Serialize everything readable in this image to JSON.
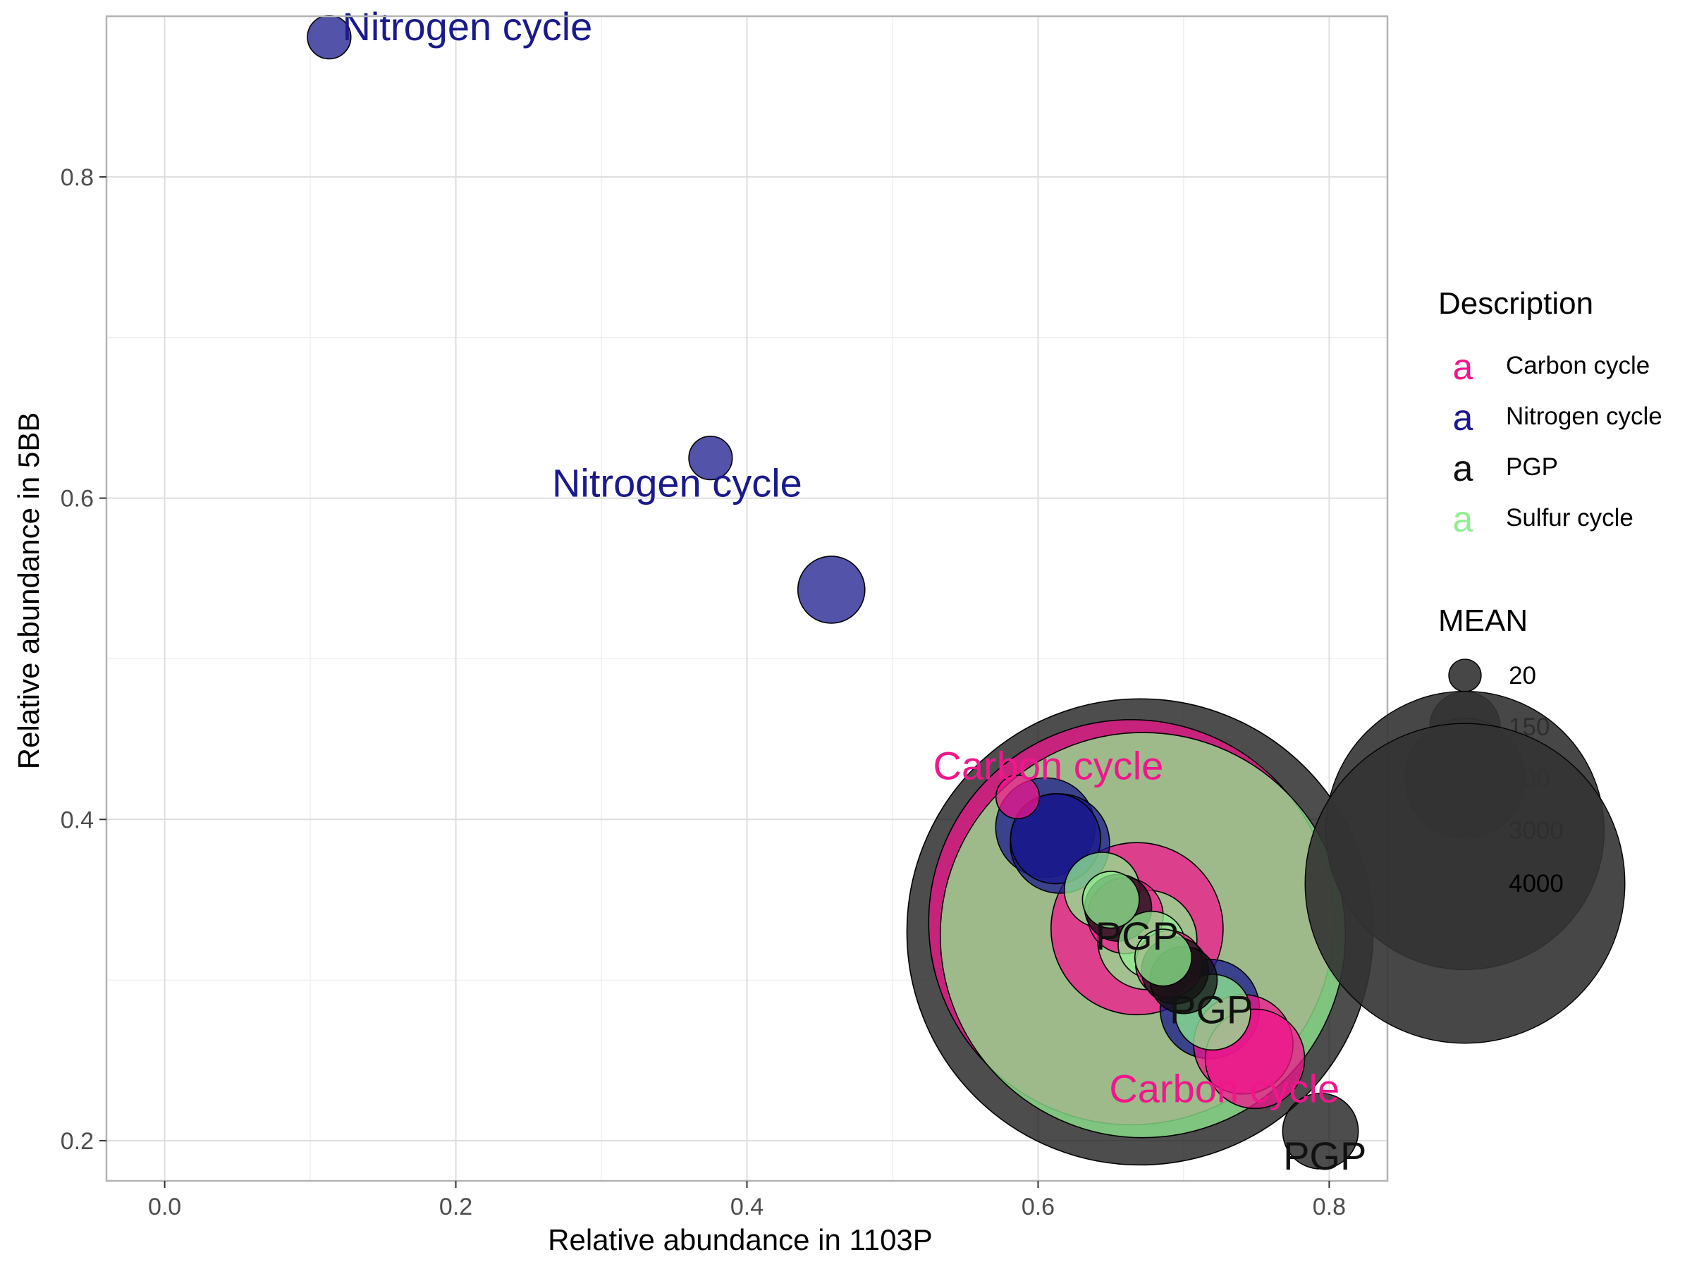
{
  "chart_data": {
    "type": "scatter",
    "title": "",
    "xlabel": "Relative abundance in 1103P",
    "ylabel": "Relative abundance in 5BB",
    "xlim": [
      -0.04,
      0.84
    ],
    "ylim": [
      0.175,
      0.9
    ],
    "xticks": [
      0.0,
      0.2,
      0.4,
      0.6,
      0.8
    ],
    "xtick_labels": [
      "0.0",
      "0.2",
      "0.4",
      "0.6",
      "0.8"
    ],
    "yticks": [
      0.2,
      0.4,
      0.6,
      0.8
    ],
    "ytick_labels": [
      "0.2",
      "0.4",
      "0.6",
      "0.8"
    ],
    "grid": true,
    "legend_position": "right",
    "colors": {
      "Carbon cycle": "#F0168C",
      "Nitrogen cycle": "#1A1A8C",
      "PGP": "#111111",
      "Sulfur cycle": "#90EE90"
    },
    "legend": {
      "color_title": "Description",
      "color_entries": [
        {
          "glyph": "a",
          "label": "Carbon cycle"
        },
        {
          "glyph": "a",
          "label": "Nitrogen cycle"
        },
        {
          "glyph": "a",
          "label": "PGP"
        },
        {
          "glyph": "a",
          "label": "Sulfur cycle"
        }
      ],
      "size_title": "MEAN",
      "size_entries": [
        {
          "label": "20",
          "mean": 20
        },
        {
          "label": "150",
          "mean": 150
        },
        {
          "label": "500",
          "mean": 500
        },
        {
          "label": "3000",
          "mean": 3000
        },
        {
          "label": "4000",
          "mean": 4000
        }
      ]
    },
    "points": [
      {
        "x": 0.113,
        "y": 0.887,
        "mean": 20,
        "group": "Nitrogen cycle"
      },
      {
        "x": 0.375,
        "y": 0.625,
        "mean": 20,
        "group": "Nitrogen cycle"
      },
      {
        "x": 0.458,
        "y": 0.543,
        "mean": 60,
        "group": "Nitrogen cycle"
      },
      {
        "x": 0.586,
        "y": 0.414,
        "mean": 20,
        "group": "Carbon cycle"
      },
      {
        "x": 0.605,
        "y": 0.395,
        "mean": 150,
        "group": "Nitrogen cycle"
      },
      {
        "x": 0.612,
        "y": 0.388,
        "mean": 120,
        "group": "Nitrogen cycle"
      },
      {
        "x": 0.615,
        "y": 0.385,
        "mean": 150,
        "group": "Nitrogen cycle"
      },
      {
        "x": 0.644,
        "y": 0.356,
        "mean": 80,
        "group": "Sulfur cycle"
      },
      {
        "x": 0.65,
        "y": 0.35,
        "mean": 40,
        "group": "Sulfur cycle"
      },
      {
        "x": 0.655,
        "y": 0.345,
        "mean": 60,
        "group": "PGP"
      },
      {
        "x": 0.66,
        "y": 0.34,
        "mean": 80,
        "group": "Carbon cycle"
      },
      {
        "x": 0.664,
        "y": 0.336,
        "mean": 3000,
        "group": "Carbon cycle"
      },
      {
        "x": 0.668,
        "y": 0.332,
        "mean": 500,
        "group": "Carbon cycle"
      },
      {
        "x": 0.67,
        "y": 0.33,
        "mean": 4000,
        "group": "PGP"
      },
      {
        "x": 0.672,
        "y": 0.328,
        "mean": 3000,
        "group": "Sulfur cycle"
      },
      {
        "x": 0.675,
        "y": 0.325,
        "mean": 150,
        "group": "Sulfur cycle"
      },
      {
        "x": 0.678,
        "y": 0.322,
        "mean": 60,
        "group": "Sulfur cycle"
      },
      {
        "x": 0.686,
        "y": 0.314,
        "mean": 40,
        "group": "Sulfur cycle"
      },
      {
        "x": 0.69,
        "y": 0.31,
        "mean": 60,
        "group": "Carbon cycle"
      },
      {
        "x": 0.694,
        "y": 0.306,
        "mean": 60,
        "group": "PGP"
      },
      {
        "x": 0.7,
        "y": 0.3,
        "mean": 60,
        "group": "PGP"
      },
      {
        "x": 0.718,
        "y": 0.282,
        "mean": 150,
        "group": "Nitrogen cycle"
      },
      {
        "x": 0.72,
        "y": 0.28,
        "mean": 80,
        "group": "Sulfur cycle"
      },
      {
        "x": 0.741,
        "y": 0.26,
        "mean": 150,
        "group": "Carbon cycle"
      },
      {
        "x": 0.749,
        "y": 0.251,
        "mean": 150,
        "group": "Carbon cycle"
      },
      {
        "x": 0.794,
        "y": 0.206,
        "mean": 80,
        "group": "PGP"
      }
    ],
    "annotations": [
      {
        "text": "Nitrogen cycle",
        "x": 0.122,
        "y": 0.885,
        "group": "Nitrogen cycle",
        "anchor": "start"
      },
      {
        "text": "Nitrogen cycle",
        "x": 0.352,
        "y": 0.601,
        "group": "Nitrogen cycle",
        "anchor": "middle"
      },
      {
        "text": "Carbon cycle",
        "x": 0.607,
        "y": 0.425,
        "group": "Carbon cycle",
        "anchor": "middle"
      },
      {
        "text": "PGP",
        "x": 0.668,
        "y": 0.319,
        "group": "PGP",
        "anchor": "middle"
      },
      {
        "text": "PGP",
        "x": 0.719,
        "y": 0.273,
        "group": "PGP",
        "anchor": "middle"
      },
      {
        "text": "Carbon cycle",
        "x": 0.728,
        "y": 0.224,
        "group": "Carbon cycle",
        "anchor": "middle"
      },
      {
        "text": "PGP",
        "x": 0.797,
        "y": 0.182,
        "group": "PGP",
        "anchor": "middle"
      }
    ]
  }
}
